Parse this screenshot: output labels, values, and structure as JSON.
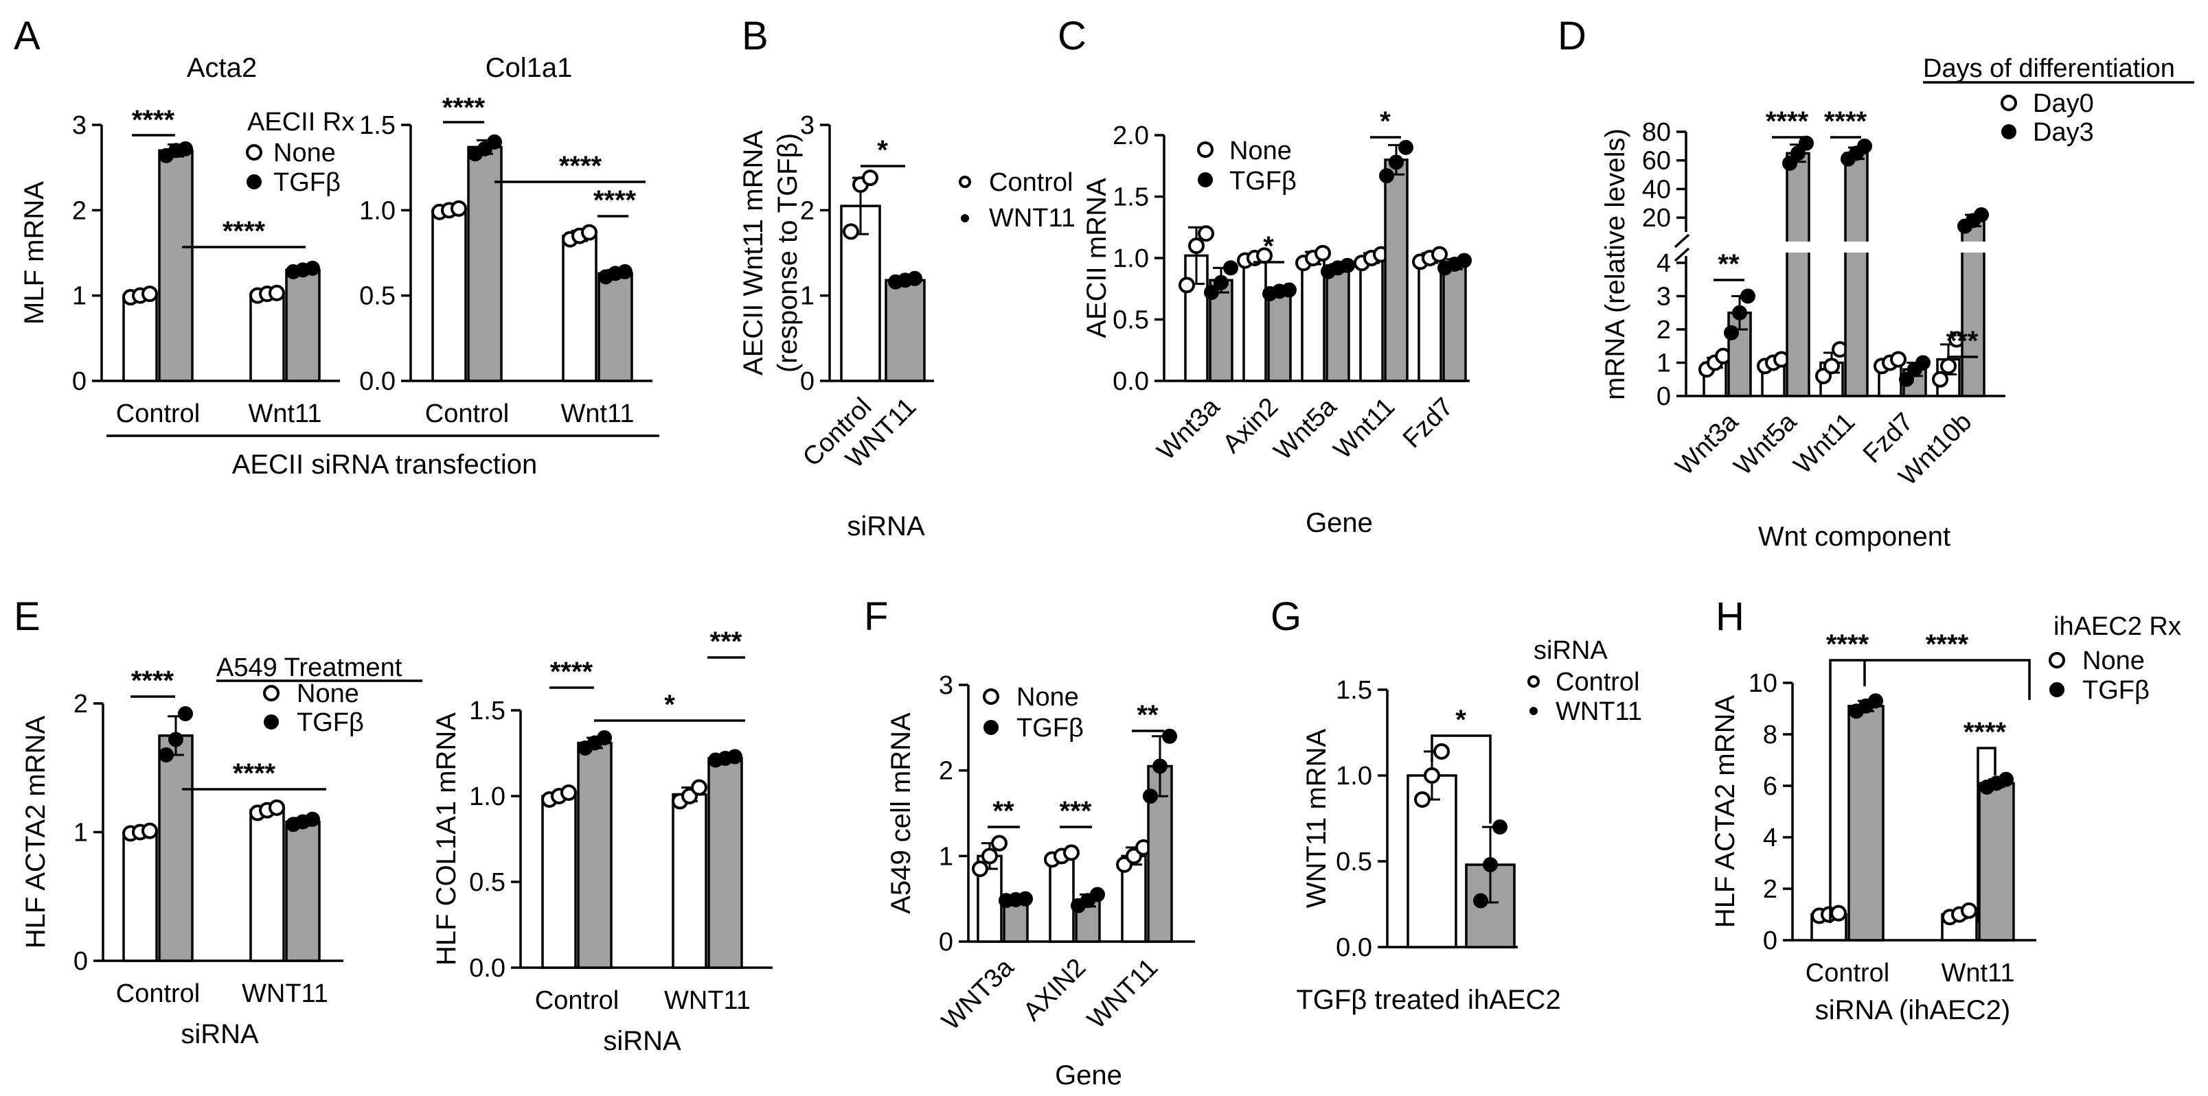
{
  "chart_data": [
    {
      "id": "A1",
      "panel": "A",
      "type": "bar",
      "title": "Acta2",
      "ylabel": "MLF mRNA",
      "xlabel": "",
      "ylim": [
        0,
        3
      ],
      "yticks": [
        "0",
        "1",
        "2",
        "3"
      ],
      "ytickvals": [
        0,
        1,
        2,
        3
      ],
      "categories": [
        "Control",
        "Wnt11"
      ],
      "legend_title": "AECII Rx",
      "series": [
        {
          "name": "None",
          "values": [
            1.0,
            1.02
          ],
          "err": [
            0.03,
            0.03
          ],
          "points": [
            [
              0.98,
              1.0,
              1.02
            ],
            [
              1.0,
              1.02,
              1.03
            ]
          ]
        },
        {
          "name": "TGFβ",
          "values": [
            2.7,
            1.3
          ],
          "err": [
            0.07,
            0.03
          ],
          "points": [
            [
              2.64,
              2.7,
              2.72
            ],
            [
              1.28,
              1.3,
              1.32
            ]
          ]
        }
      ],
      "significance": [
        "****",
        "****"
      ]
    },
    {
      "id": "A2",
      "panel": "A",
      "type": "bar",
      "title": "Col1a1",
      "ylabel": "",
      "xlabel": "",
      "ylim": [
        0,
        1.5
      ],
      "yticks": [
        "0.0",
        "0.5",
        "1.0",
        "1.5"
      ],
      "ytickvals": [
        0,
        0.5,
        1.0,
        1.5
      ],
      "categories": [
        "Control",
        "Wnt11"
      ],
      "series": [
        {
          "name": "None",
          "values": [
            1.0,
            0.85
          ],
          "err": [
            0.01,
            0.03
          ],
          "points": [
            [
              0.99,
              1.0,
              1.01
            ],
            [
              0.83,
              0.85,
              0.87
            ]
          ]
        },
        {
          "name": "TGFβ",
          "values": [
            1.37,
            0.63
          ],
          "err": [
            0.04,
            0.02
          ],
          "points": [
            [
              1.33,
              1.36,
              1.4
            ],
            [
              0.61,
              0.63,
              0.64
            ]
          ]
        }
      ],
      "significance": [
        "****",
        "****",
        "****"
      ],
      "group_label": "AECII siRNA transfection"
    },
    {
      "id": "B",
      "panel": "B",
      "type": "bar",
      "title": "",
      "ylabel": "AECII Wnt11 mRNA",
      "ylabel2": "(response to TGFβ)",
      "xlabel": "siRNA",
      "ylim": [
        0,
        3
      ],
      "yticks": [
        "0",
        "1",
        "2",
        "3"
      ],
      "ytickvals": [
        0,
        1,
        2,
        3
      ],
      "categories": [
        "Control",
        "WNT11"
      ],
      "legend": [
        "Control",
        "WNT11"
      ],
      "series": [
        {
          "name": "response",
          "values": [
            2.05,
            1.18
          ],
          "err": [
            0.33,
            0.03
          ],
          "points": [
            [
              1.75,
              2.3,
              2.38
            ],
            [
              1.16,
              1.18,
              1.2
            ]
          ]
        }
      ],
      "significance": [
        "*"
      ]
    },
    {
      "id": "C",
      "panel": "C",
      "type": "bar",
      "title": "",
      "ylabel": "AECII mRNA",
      "xlabel": "Gene",
      "ylim": [
        0,
        2.0
      ],
      "yticks": [
        "0.0",
        "0.5",
        "1.0",
        "1.5",
        "2.0"
      ],
      "ytickvals": [
        0,
        0.5,
        1.0,
        1.5,
        2.0
      ],
      "categories": [
        "Wnt3a",
        "Axin2",
        "Wnt5a",
        "Wnt11",
        "Fzd7"
      ],
      "series": [
        {
          "name": "None",
          "values": [
            1.02,
            1.0,
            1.0,
            1.0,
            1.0
          ],
          "err": [
            0.23,
            0.02,
            0.05,
            0.04,
            0.04
          ],
          "points": [
            [
              0.78,
              1.1,
              1.2
            ],
            [
              0.98,
              1.0,
              1.02
            ],
            [
              0.96,
              1.0,
              1.04
            ],
            [
              0.96,
              1.0,
              1.03
            ],
            [
              0.97,
              1.0,
              1.03
            ]
          ]
        },
        {
          "name": "TGFβ",
          "values": [
            0.82,
            0.73,
            0.92,
            1.8,
            0.95
          ],
          "err": [
            0.1,
            0.02,
            0.03,
            0.12,
            0.04
          ],
          "points": [
            [
              0.72,
              0.8,
              0.92
            ],
            [
              0.71,
              0.73,
              0.74
            ],
            [
              0.89,
              0.92,
              0.94
            ],
            [
              1.67,
              1.78,
              1.9
            ],
            [
              0.92,
              0.95,
              0.98
            ]
          ]
        }
      ],
      "significance": [
        "*",
        "*"
      ]
    },
    {
      "id": "D",
      "panel": "D",
      "type": "bar",
      "title": "",
      "ylabel": "mRNA (relative levels)",
      "xlabel": "Wnt component",
      "y_axis_break": true,
      "ylim_low": [
        0,
        4
      ],
      "ylim_high": [
        10,
        80
      ],
      "yticks_low": [
        "0",
        "1",
        "2",
        "3",
        "4"
      ],
      "yticks_high": [
        "20",
        "40",
        "60",
        "80"
      ],
      "categories": [
        "Wnt3a",
        "Wnt5a",
        "Wnt11",
        "Fzd7",
        "Wnt10b"
      ],
      "legend_title": "Days of differentiation",
      "series": [
        {
          "name": "Day0",
          "values": [
            1.0,
            1.0,
            1.0,
            1.0,
            1.1
          ],
          "err": [
            0.15,
            0.1,
            0.3,
            0.1,
            0.45
          ],
          "points": [
            [
              0.8,
              1.0,
              1.2
            ],
            [
              0.9,
              1.0,
              1.1
            ],
            [
              0.6,
              0.9,
              1.4
            ],
            [
              0.9,
              1.0,
              1.1
            ],
            [
              0.5,
              0.9,
              1.7
            ]
          ]
        },
        {
          "name": "Day3",
          "values": [
            2.5,
            65,
            65,
            0.8,
            18
          ],
          "err": [
            0.5,
            6,
            4,
            0.2,
            4
          ],
          "points": [
            [
              1.9,
              2.5,
              3.0
            ],
            [
              58,
              65,
              72
            ],
            [
              61,
              65,
              70
            ],
            [
              0.5,
              0.8,
              1.0
            ],
            [
              14,
              18,
              22
            ]
          ]
        }
      ],
      "significance": [
        "**",
        "****",
        "****",
        "***"
      ]
    },
    {
      "id": "E1",
      "panel": "E",
      "type": "bar",
      "title": "",
      "ylabel": "HLF ACTA2 mRNA",
      "xlabel": "siRNA",
      "ylim": [
        0,
        2
      ],
      "yticks": [
        "0",
        "1",
        "2"
      ],
      "ytickvals": [
        0,
        1,
        2
      ],
      "categories": [
        "Control",
        "WNT11"
      ],
      "legend_title": "A549 Treatment",
      "series": [
        {
          "name": "None",
          "values": [
            1.0,
            1.17
          ],
          "err": [
            0.01,
            0.03
          ],
          "points": [
            [
              0.99,
              1.0,
              1.01
            ],
            [
              1.15,
              1.17,
              1.19
            ]
          ]
        },
        {
          "name": "TGFβ",
          "values": [
            1.75,
            1.08
          ],
          "err": [
            0.15,
            0.03
          ],
          "points": [
            [
              1.6,
              1.72,
              1.92
            ],
            [
              1.06,
              1.08,
              1.1
            ]
          ]
        }
      ],
      "significance": [
        "****",
        "****"
      ]
    },
    {
      "id": "E2",
      "panel": "E",
      "type": "bar",
      "title": "",
      "ylabel": "HLF COL1A1 mRNA",
      "xlabel": "siRNA",
      "ylim": [
        0,
        1.5
      ],
      "yticks": [
        "0.0",
        "0.5",
        "1.0",
        "1.5"
      ],
      "ytickvals": [
        0,
        0.5,
        1.0,
        1.5
      ],
      "categories": [
        "Control",
        "WNT11"
      ],
      "series": [
        {
          "name": "None",
          "values": [
            1.0,
            1.01
          ],
          "err": [
            0.02,
            0.04
          ],
          "points": [
            [
              0.98,
              1.0,
              1.02
            ],
            [
              0.97,
              1.0,
              1.05
            ]
          ]
        },
        {
          "name": "TGFβ",
          "values": [
            1.31,
            1.22
          ],
          "err": [
            0.03,
            0.01
          ],
          "points": [
            [
              1.28,
              1.31,
              1.34
            ],
            [
              1.21,
              1.22,
              1.23
            ]
          ]
        }
      ],
      "significance": [
        "****",
        "*",
        "***"
      ]
    },
    {
      "id": "F",
      "panel": "F",
      "type": "bar",
      "title": "",
      "ylabel": "A549 cell mRNA",
      "xlabel": "Gene",
      "ylim": [
        0,
        3
      ],
      "yticks": [
        "0",
        "1",
        "2",
        "3"
      ],
      "ytickvals": [
        0,
        1,
        2,
        3
      ],
      "categories": [
        "WNT3a",
        "AXIN2",
        "WNT11"
      ],
      "series": [
        {
          "name": "None",
          "values": [
            1.0,
            1.0,
            1.0
          ],
          "err": [
            0.15,
            0.04,
            0.1
          ],
          "points": [
            [
              0.85,
              1.0,
              1.15
            ],
            [
              0.96,
              1.0,
              1.04
            ],
            [
              0.9,
              1.0,
              1.1
            ]
          ]
        },
        {
          "name": "TGFβ",
          "values": [
            0.49,
            0.48,
            2.05
          ],
          "err": [
            0.01,
            0.07,
            0.35
          ],
          "points": [
            [
              0.48,
              0.49,
              0.5
            ],
            [
              0.42,
              0.48,
              0.55
            ],
            [
              1.7,
              2.05,
              2.4
            ]
          ]
        }
      ],
      "significance": [
        "**",
        "***",
        "**"
      ]
    },
    {
      "id": "G",
      "panel": "G",
      "type": "bar",
      "title": "",
      "ylabel": "WNT11 mRNA",
      "xlabel": "TGFβ treated ihAEC2",
      "ylim": [
        0,
        1.5
      ],
      "yticks": [
        "0.0",
        "0.5",
        "1.0",
        "1.5"
      ],
      "ytickvals": [
        0,
        0.5,
        1.0,
        1.5
      ],
      "categories": [
        "Control",
        "WNT11"
      ],
      "legend_title": "siRNA",
      "legend": [
        "Control",
        "WNT11"
      ],
      "series": [
        {
          "name": "WNT11 mRNA",
          "values": [
            1.0,
            0.48
          ],
          "err": [
            0.14,
            0.22
          ],
          "points": [
            [
              0.86,
              1.0,
              1.14
            ],
            [
              0.27,
              0.48,
              0.7
            ]
          ]
        }
      ],
      "significance": [
        "*"
      ]
    },
    {
      "id": "H",
      "panel": "H",
      "type": "bar",
      "title": "",
      "ylabel": "HLF ACTA2 mRNA",
      "xlabel": "siRNA (ihAEC2)",
      "ylim": [
        0,
        10
      ],
      "yticks": [
        "0",
        "2",
        "4",
        "6",
        "8",
        "10"
      ],
      "ytickvals": [
        0,
        2,
        4,
        6,
        8,
        10
      ],
      "categories": [
        "Control",
        "Wnt11"
      ],
      "legend_title": "ihAEC2 Rx",
      "series": [
        {
          "name": "None",
          "values": [
            1.0,
            1.0
          ],
          "err": [
            0.05,
            0.15
          ],
          "points": [
            [
              0.95,
              1.0,
              1.05
            ],
            [
              0.9,
              1.0,
              1.15
            ]
          ]
        },
        {
          "name": "TGFβ",
          "values": [
            9.1,
            6.1
          ],
          "err": [
            0.2,
            0.15
          ],
          "points": [
            [
              8.9,
              9.1,
              9.3
            ],
            [
              5.95,
              6.1,
              6.25
            ]
          ]
        }
      ],
      "significance": [
        "****",
        "****",
        "****"
      ]
    }
  ]
}
